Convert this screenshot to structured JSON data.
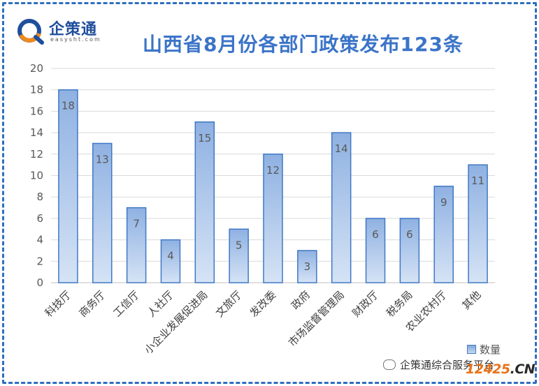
{
  "logo": {
    "name": "企策通",
    "domain": "easysht.com"
  },
  "chart_data": {
    "type": "bar",
    "title": "山西省8月份各部门政策发布123条",
    "categories": [
      "科技厅",
      "商务厅",
      "工信厅",
      "人社厅",
      "小企业发展促进局",
      "文旅厅",
      "发改委",
      "政府",
      "市场监督管理局",
      "财政厅",
      "税务局",
      "农业农村厅",
      "其他"
    ],
    "series": [
      {
        "name": "数量",
        "values": [
          18,
          13,
          7,
          4,
          15,
          5,
          12,
          3,
          14,
          6,
          6,
          9,
          11
        ]
      }
    ],
    "ylim": [
      0,
      20
    ],
    "yticks": [
      0,
      2,
      4,
      6,
      8,
      10,
      12,
      14,
      16,
      18,
      20
    ],
    "xlabel": "",
    "ylabel": "",
    "grid": true,
    "legend_position": "bottom-right",
    "data_labels": true
  },
  "colors": {
    "bar_top": "#8fb1e2",
    "bar_bottom": "#d5e3f5",
    "bar_border": "#3f78c4",
    "title": "#3b74c8",
    "frame": "#2f6fbf"
  },
  "watermark": {
    "text": "企策通综合服务平台"
  },
  "badge": {
    "number": "12425",
    "suffix": ".CN"
  }
}
